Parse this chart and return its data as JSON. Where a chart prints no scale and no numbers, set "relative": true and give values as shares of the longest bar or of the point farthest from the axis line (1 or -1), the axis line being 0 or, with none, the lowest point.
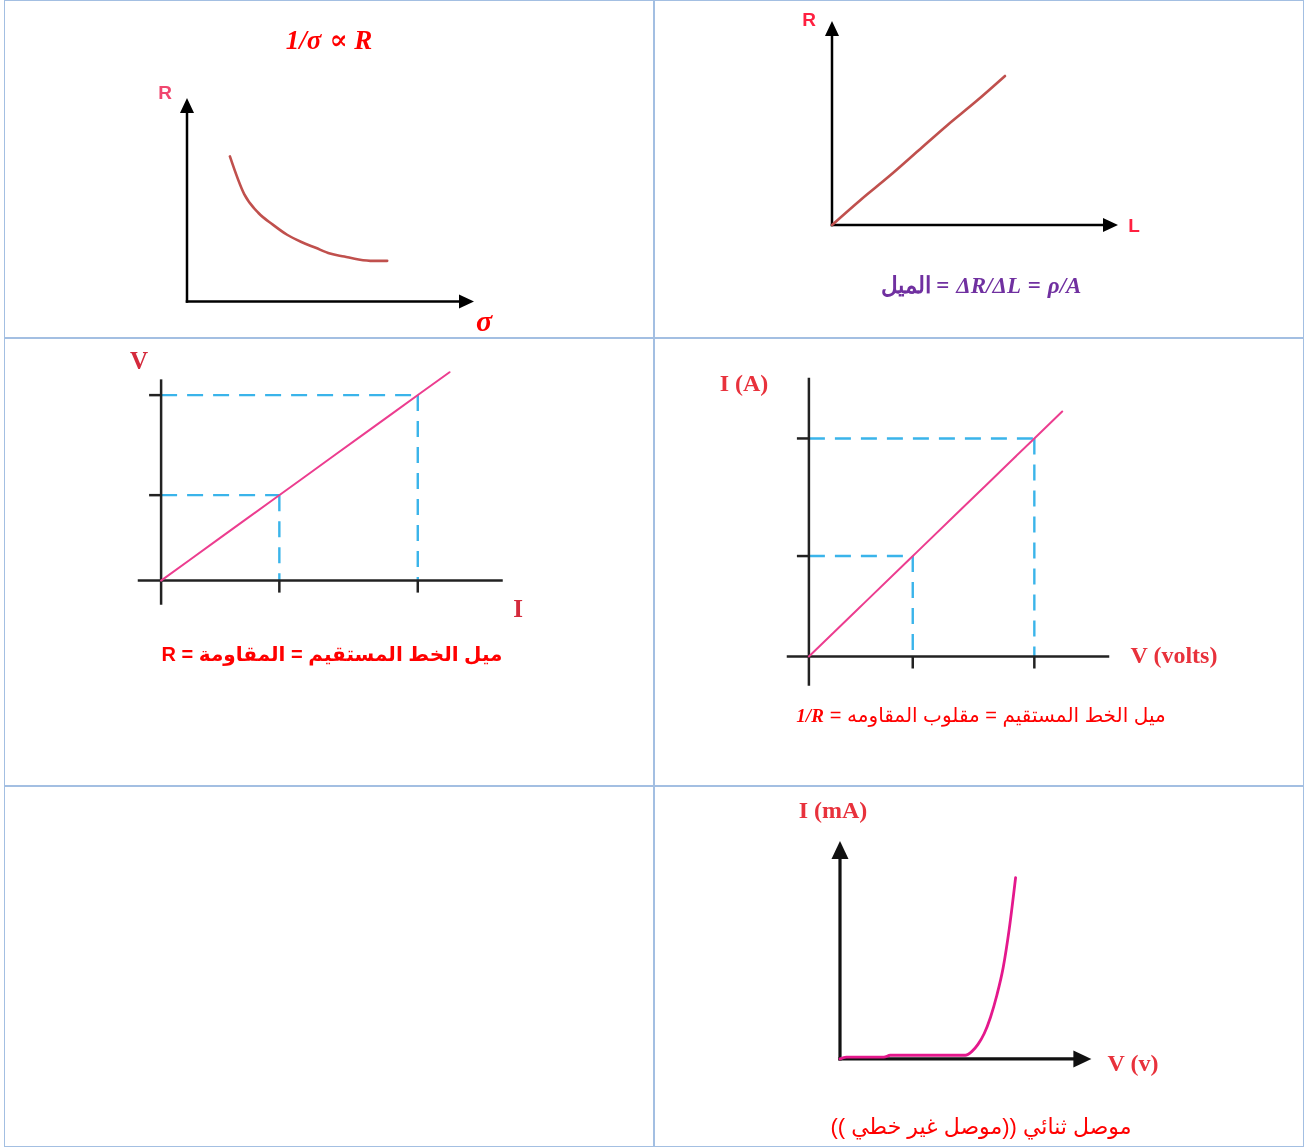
{
  "chart_data": [
    {
      "type": "line",
      "title": "1/σ ∝ R",
      "xlabel": "σ",
      "ylabel": "R",
      "relative": true,
      "marker": "none",
      "categories": [
        null,
        null,
        null,
        null,
        null,
        null,
        null,
        null,
        null,
        null,
        null,
        null,
        null,
        null,
        null
      ],
      "series": [
        {
          "color": "#c0504d",
          "values": [
            null,
            null,
            null,
            1.0,
            0.74,
            0.61,
            0.53,
            0.46,
            0.41,
            0.37,
            0.33,
            0.31,
            0.29,
            0.28,
            0.28
          ]
        }
      ]
    },
    {
      "type": "line",
      "xlabel": "L",
      "ylabel": "R",
      "relative": true,
      "marker": "none",
      "categories": [
        null,
        null,
        null,
        null,
        null,
        null,
        null
      ],
      "series": [
        {
          "color": "#c0504d",
          "values": [
            0,
            0.17,
            0.33,
            0.5,
            0.67,
            0.83,
            1.0
          ]
        }
      ],
      "annotations": [
        "ρ/A = ΔR/ΔL = الميل"
      ]
    },
    {
      "type": "line",
      "xlabel": "I",
      "ylabel": "V",
      "relative": true,
      "marker": "none",
      "categories": [
        null,
        null,
        null,
        null,
        null,
        null
      ],
      "series": [
        {
          "color": "#ec3d8f",
          "values": [
            0,
            0.2,
            0.4,
            0.6,
            0.8,
            1.0
          ]
        }
      ],
      "ref_lines": [
        {
          "axis": "y",
          "value": 0.41,
          "color": "#3ab4ea",
          "line_style": "dashed"
        },
        {
          "axis": "y",
          "value": 0.89,
          "color": "#3ab4ea",
          "line_style": "dashed"
        }
      ],
      "annotations": [
        "ميل الخط المستقيم = المقاومة = R"
      ]
    },
    {
      "type": "line",
      "xlabel": "V (volts)",
      "ylabel": "I (A)",
      "relative": true,
      "marker": "none",
      "categories": [
        null,
        null,
        null,
        null,
        null,
        null
      ],
      "series": [
        {
          "color": "#ec3d8f",
          "values": [
            0,
            0.2,
            0.4,
            0.6,
            0.8,
            1.0
          ]
        }
      ],
      "ref_lines": [
        {
          "axis": "y",
          "value": 0.41,
          "color": "#3ab4ea",
          "line_style": "dashed"
        },
        {
          "axis": "y",
          "value": 0.89,
          "color": "#3ab4ea",
          "line_style": "dashed"
        }
      ],
      "annotations": [
        "ميل الخط المستقيم = مقلوب المقاومه = 1/R"
      ]
    },
    {
      "type": "line",
      "xlabel": "V (v)",
      "ylabel": "I (mA)",
      "relative": true,
      "marker": "none",
      "categories": [
        null,
        null,
        null,
        null,
        null,
        null,
        null,
        null,
        null,
        null,
        null,
        null,
        null,
        null,
        null,
        null,
        null,
        null,
        null,
        null,
        null,
        null,
        null,
        null,
        null,
        null,
        null,
        null,
        null
      ],
      "series": [
        {
          "color": "#e4188c",
          "values": [
            0,
            0.01,
            0.01,
            0.01,
            0.01,
            0.01,
            0.01,
            0.01,
            0.02,
            0.02,
            0.02,
            0.02,
            0.02,
            0.02,
            0.02,
            0.02,
            0.02,
            0.02,
            0.02,
            0.02,
            0.02,
            0.04,
            0.08,
            0.14,
            0.23,
            0.35,
            0.5,
            0.72,
            1.0
          ]
        }
      ],
      "annotations": [
        "موصل ثنائي ((موصل غير خطي ))"
      ]
    }
  ]
}
